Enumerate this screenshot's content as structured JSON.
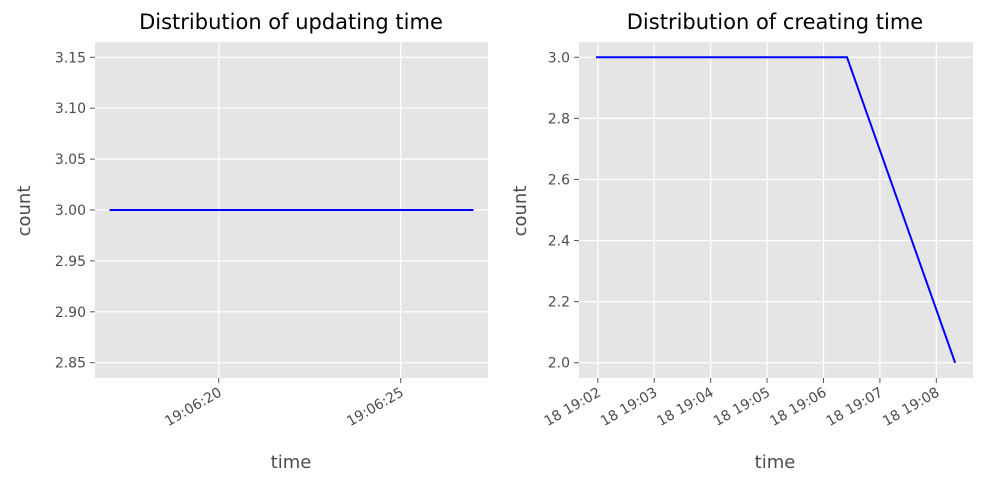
{
  "chart_data": [
    {
      "type": "line",
      "title": "Distribution of updating time",
      "xlabel": "time",
      "ylabel": "count",
      "x": [
        "19:06:17",
        "19:06:27"
      ],
      "series": [
        {
          "values": [
            3.0,
            3.0
          ],
          "color": "#0000ff"
        }
      ],
      "xlim": [
        "19:06:16.6",
        "19:06:27.4"
      ],
      "ylim": [
        2.835,
        3.165
      ],
      "xticks": [
        "19:06:20",
        "19:06:25"
      ],
      "yticks": [
        "2.85",
        "2.90",
        "2.95",
        "3.00",
        "3.05",
        "3.10",
        "3.15"
      ],
      "grid": true,
      "background": "#e5e5e5",
      "gridline_color": "#ffffff"
    },
    {
      "type": "line",
      "title": "Distribution of creating time",
      "xlabel": "time",
      "ylabel": "count",
      "x": [
        "18 19:01:58",
        "18 19:06:25",
        "18 19:08:20"
      ],
      "series": [
        {
          "values": [
            3.0,
            3.0,
            2.0
          ],
          "color": "#0000ff"
        }
      ],
      "xlim": [
        "18 19:01:40",
        "18 19:08:39"
      ],
      "ylim": [
        1.95,
        3.05
      ],
      "xticks": [
        "18 19:02",
        "18 19:03",
        "18 19:04",
        "18 19:05",
        "18 19:06",
        "18 19:07",
        "18 19:08"
      ],
      "yticks": [
        "2.0",
        "2.2",
        "2.4",
        "2.6",
        "2.8",
        "3.0"
      ],
      "grid": true,
      "background": "#e5e5e5",
      "gridline_color": "#ffffff"
    }
  ]
}
